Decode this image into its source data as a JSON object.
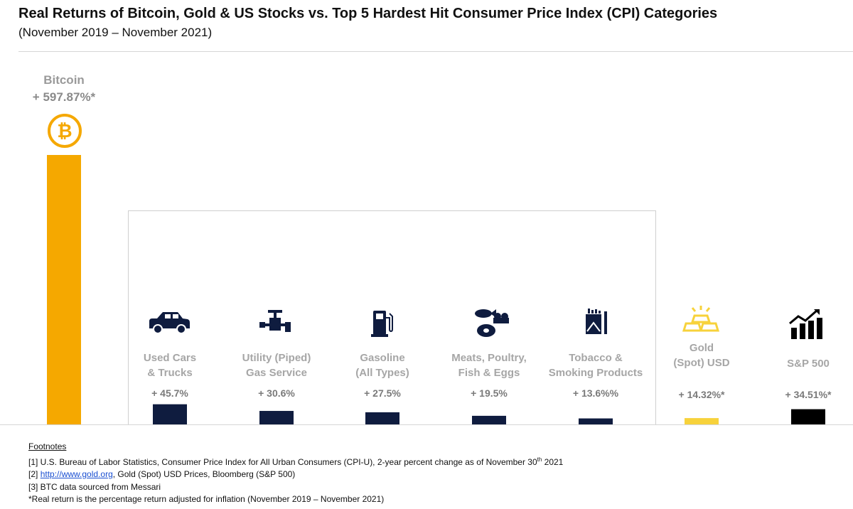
{
  "title": "Real Returns of Bitcoin, Gold & US Stocks vs. Top 5 Hardest Hit Consumer Price Index (CPI) Categories",
  "subtitle": "(November 2019 – November 2021)",
  "colors": {
    "bitcoin": "#F5A800",
    "cpi": "#0F1C3F",
    "gold": "#F7D23B",
    "sp500": "#000000",
    "label": "#A6A6A6"
  },
  "chart_data": {
    "type": "bar",
    "title": "Real Returns of Bitcoin, Gold & US Stocks vs. Top 5 Hardest Hit Consumer Price Index (CPI) Categories",
    "subtitle": "(November 2019 – November 2021)",
    "categories": [
      "Bitcoin",
      "Used Cars & Trucks",
      "Utility (Piped) Gas Service",
      "Gasoline (All Types)",
      "Meats, Poultry, Fish & Eggs",
      "Tobacco & Smoking Products",
      "Gold (Spot) USD",
      "S&P 500"
    ],
    "values": [
      597.87,
      45.7,
      30.6,
      27.5,
      19.5,
      13.6,
      14.32,
      34.51
    ],
    "units": "%",
    "xlabel": "",
    "ylabel": "",
    "grid": false,
    "bars": [
      {
        "key": "bitcoin",
        "label_lines": [
          "Bitcoin"
        ],
        "value": 597.87,
        "value_label": "+ 597.87%*",
        "color": "#F5A800",
        "icon": "bitcoin-icon",
        "group": "asset"
      },
      {
        "key": "used-cars",
        "label_lines": [
          "Used Cars",
          "& Trucks"
        ],
        "value": 45.7,
        "value_label": "+ 45.7%",
        "color": "#0F1C3F",
        "icon": "car-icon",
        "group": "cpi"
      },
      {
        "key": "utility-gas",
        "label_lines": [
          "Utility (Piped)",
          "Gas Service"
        ],
        "value": 30.6,
        "value_label": "+ 30.6%",
        "color": "#0F1C3F",
        "icon": "gas-valve-icon",
        "group": "cpi"
      },
      {
        "key": "gasoline",
        "label_lines": [
          "Gasoline",
          "(All Types)"
        ],
        "value": 27.5,
        "value_label": "+ 27.5%",
        "color": "#0F1C3F",
        "icon": "fuel-pump-icon",
        "group": "cpi"
      },
      {
        "key": "meats",
        "label_lines": [
          "Meats, Poultry,",
          "Fish & Eggs"
        ],
        "value": 19.5,
        "value_label": "+ 19.5%",
        "color": "#0F1C3F",
        "icon": "meat-fish-eggs-icon",
        "group": "cpi"
      },
      {
        "key": "tobacco",
        "label_lines": [
          "Tobacco &",
          "Smoking Products"
        ],
        "value": 13.6,
        "value_label": "+ 13.6%%",
        "color": "#0F1C3F",
        "icon": "cigarette-pack-icon",
        "group": "cpi"
      },
      {
        "key": "gold",
        "label_lines": [
          "Gold",
          "(Spot) USD"
        ],
        "value": 14.32,
        "value_label": "+ 14.32%*",
        "color": "#F7D23B",
        "icon": "gold-bars-icon",
        "group": "asset"
      },
      {
        "key": "sp500",
        "label_lines": [
          "S&P 500"
        ],
        "value": 34.51,
        "value_label": "+ 34.51%*",
        "color": "#000000",
        "icon": "stock-chart-icon",
        "group": "asset"
      }
    ]
  },
  "footnotes": {
    "heading": "Footnotes",
    "n1_prefix": "[1] U.S. Bureau of Labor Statistics, Consumer Price Index for All Urban Consumers (CPI-U), 2-year percent change as of November 30",
    "n1_sup": "th",
    "n1_suffix": " 2021",
    "n2_prefix": "[2] ",
    "n2_link": "http://www.gold.org",
    "n2_suffix": ", Gold (Spot) USD Prices, Bloomberg (S&P 500)",
    "n3": "[3] BTC data sourced from Messari",
    "note": "*Real return is the percentage return adjusted for inflation (November 2019 – November 2021)"
  }
}
